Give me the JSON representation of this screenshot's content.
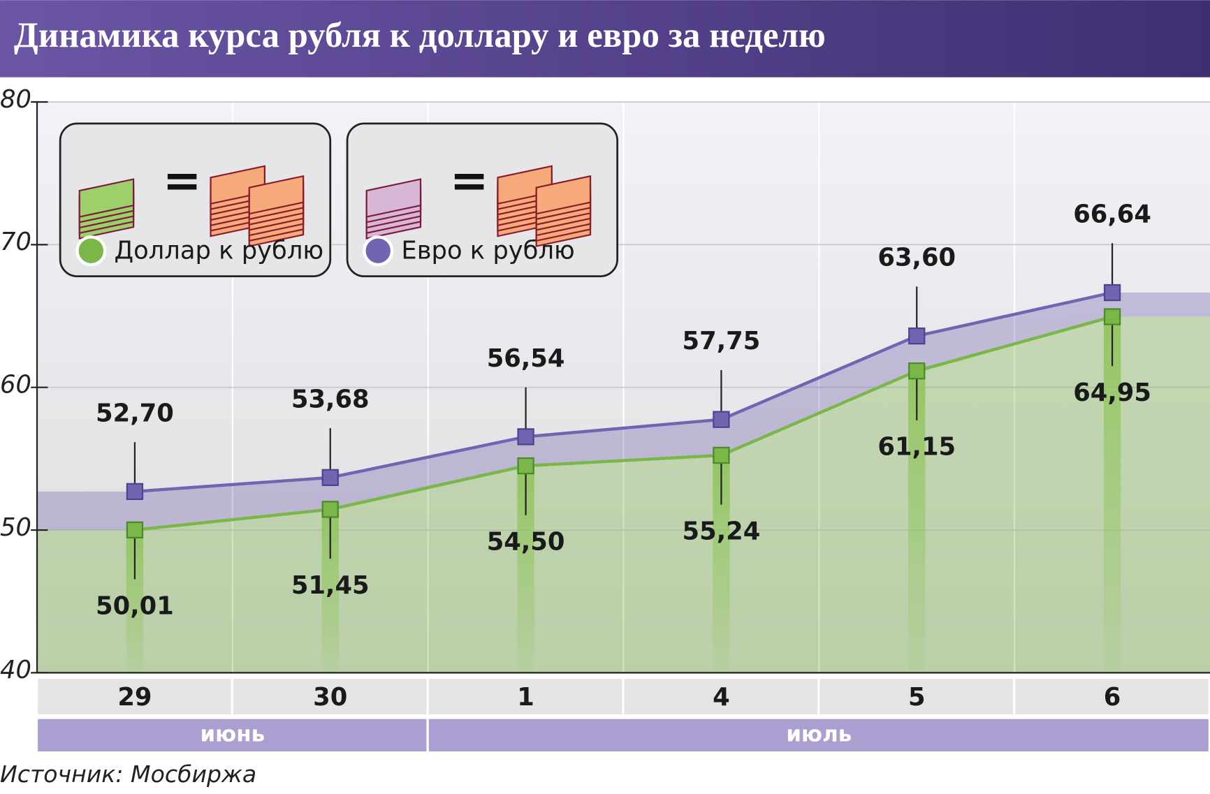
{
  "chart_data": {
    "type": "line",
    "title": "Динамика курса рубля к доллару и евро за неделю",
    "categories": [
      "29",
      "30",
      "1",
      "4",
      "5",
      "6"
    ],
    "category_groups": [
      "июнь",
      "июнь",
      "июль",
      "июль",
      "июль",
      "июль"
    ],
    "series": [
      {
        "name": "Доллар к рублю",
        "color": "#7ab648",
        "values": [
          50.01,
          51.45,
          54.5,
          55.24,
          61.15,
          64.95
        ],
        "value_labels": [
          "50,01",
          "51,45",
          "54,50",
          "55,24",
          "61,15",
          "64,95"
        ]
      },
      {
        "name": "Евро к рублю",
        "color": "#7264b0",
        "values": [
          52.7,
          53.68,
          56.54,
          57.75,
          63.6,
          66.64
        ],
        "value_labels": [
          "52,70",
          "53,68",
          "56,54",
          "57,75",
          "63,60",
          "66,64"
        ]
      }
    ],
    "ylim": [
      40,
      80
    ],
    "yticks": [
      40,
      50,
      60,
      70,
      80
    ],
    "grid": true,
    "source": "Источник: Мосбиржа"
  }
}
